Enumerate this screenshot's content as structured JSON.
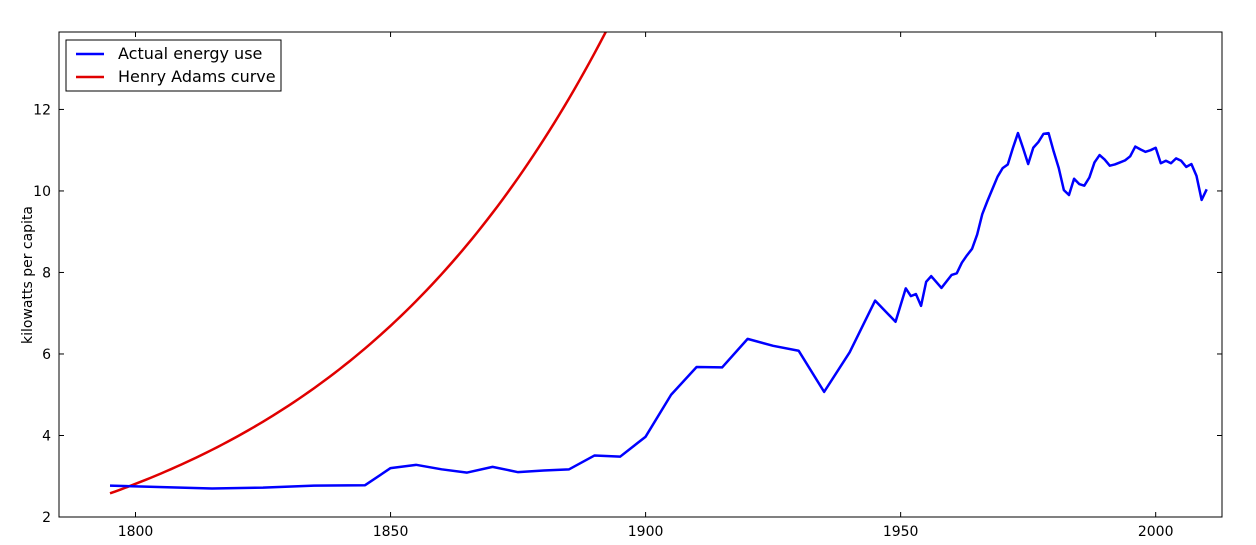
{
  "chart_data": {
    "type": "line",
    "title": "",
    "xlabel": "",
    "ylabel": "kilowatts per capita",
    "xlim": [
      1785,
      2013
    ],
    "ylim": [
      2,
      13.9
    ],
    "xticks": [
      1800,
      1850,
      1900,
      1950,
      2000
    ],
    "yticks": [
      2,
      4,
      6,
      8,
      10,
      12
    ],
    "grid": false,
    "legend_position": "top-left",
    "series": [
      {
        "name": "Actual energy use",
        "color": "#0000ff",
        "x": [
          1795,
          1815,
          1825,
          1835,
          1845,
          1850,
          1855,
          1860,
          1865,
          1870,
          1875,
          1880,
          1885,
          1890,
          1895,
          1900,
          1905,
          1910,
          1915,
          1920,
          1925,
          1930,
          1935,
          1940,
          1945,
          1949,
          1951,
          1952,
          1953,
          1954,
          1955,
          1956,
          1958,
          1960,
          1961,
          1962,
          1963,
          1964,
          1965,
          1966,
          1967,
          1968,
          1969,
          1970,
          1971,
          1972,
          1973,
          1974,
          1975,
          1976,
          1977,
          1978,
          1979,
          1980,
          1981,
          1982,
          1983,
          1984,
          1985,
          1986,
          1987,
          1988,
          1989,
          1990,
          1991,
          1992,
          1993,
          1994,
          1995,
          1996,
          1997,
          1998,
          1999,
          2000,
          2001,
          2002,
          2003,
          2004,
          2005,
          2006,
          2007,
          2008,
          2009,
          2010
        ],
        "y": [
          2.77,
          2.7,
          2.72,
          2.77,
          2.78,
          3.2,
          3.28,
          3.17,
          3.09,
          3.23,
          3.1,
          3.14,
          3.17,
          3.51,
          3.48,
          3.97,
          5.0,
          5.68,
          5.67,
          6.37,
          6.2,
          6.08,
          5.07,
          6.04,
          7.31,
          6.79,
          7.61,
          7.42,
          7.47,
          7.18,
          7.77,
          7.91,
          7.62,
          7.94,
          7.98,
          8.24,
          8.42,
          8.58,
          8.93,
          9.43,
          9.75,
          10.05,
          10.35,
          10.56,
          10.65,
          11.05,
          11.42,
          11.05,
          10.66,
          11.06,
          11.2,
          11.4,
          11.42,
          10.97,
          10.56,
          10.02,
          9.9,
          10.3,
          10.17,
          10.13,
          10.33,
          10.7,
          10.88,
          10.77,
          10.62,
          10.65,
          10.7,
          10.75,
          10.85,
          11.09,
          11.02,
          10.96,
          11.0,
          11.06,
          10.68,
          10.74,
          10.68,
          10.8,
          10.74,
          10.59,
          10.66,
          10.37,
          9.78,
          10.04
        ]
      },
      {
        "name": "Henry Adams curve",
        "color": "#e00000",
        "model": "exponential",
        "x_start": 1795,
        "x_end": 2013,
        "y_start": 2.58,
        "doubling_years": 40
      }
    ]
  }
}
